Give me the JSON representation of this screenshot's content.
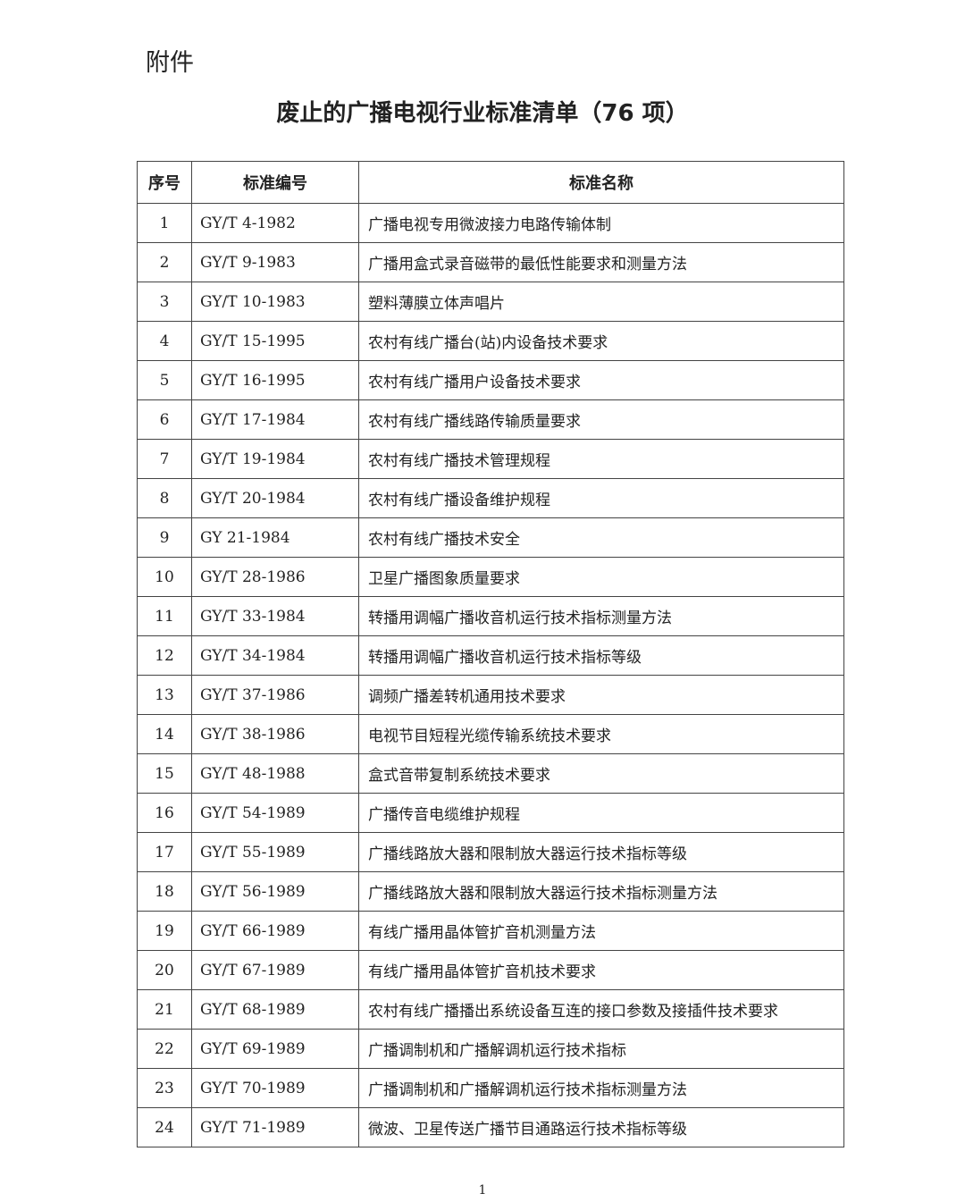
{
  "attachment_label": "附件",
  "title": "废止的广播电视行业标准清单（76 项）",
  "headers": [
    "序号",
    "标准编号",
    "标准名称"
  ],
  "rows": [
    [
      "1",
      "GY/T 4-1982",
      "广播电视专用微波接力电路传输体制"
    ],
    [
      "2",
      "GY/T 9-1983",
      "广播用盒式录音磁带的最低性能要求和测量方法"
    ],
    [
      "3",
      "GY/T 10-1983",
      "塑料薄膜立体声唱片"
    ],
    [
      "4",
      "GY/T 15-1995",
      "农村有线广播台(站)内设备技术要求"
    ],
    [
      "5",
      "GY/T 16-1995",
      "农村有线广播用户设备技术要求"
    ],
    [
      "6",
      "GY/T 17-1984",
      "农村有线广播线路传输质量要求"
    ],
    [
      "7",
      "GY/T 19-1984",
      "农村有线广播技术管理规程"
    ],
    [
      "8",
      "GY/T 20-1984",
      "农村有线广播设备维护规程"
    ],
    [
      "9",
      "GY 21-1984",
      "农村有线广播技术安全"
    ],
    [
      "10",
      "GY/T 28-1986",
      "卫星广播图象质量要求"
    ],
    [
      "11",
      "GY/T 33-1984",
      "转播用调幅广播收音机运行技术指标测量方法"
    ],
    [
      "12",
      "GY/T 34-1984",
      "转播用调幅广播收音机运行技术指标等级"
    ],
    [
      "13",
      "GY/T 37-1986",
      "调频广播差转机通用技术要求"
    ],
    [
      "14",
      "GY/T 38-1986",
      "电视节目短程光缆传输系统技术要求"
    ],
    [
      "15",
      "GY/T 48-1988",
      "盒式音带复制系统技术要求"
    ],
    [
      "16",
      "GY/T 54-1989",
      "广播传音电缆维护规程"
    ],
    [
      "17",
      "GY/T 55-1989",
      "广播线路放大器和限制放大器运行技术指标等级"
    ],
    [
      "18",
      "GY/T 56-1989",
      "广播线路放大器和限制放大器运行技术指标测量方法"
    ],
    [
      "19",
      "GY/T 66-1989",
      "有线广播用晶体管扩音机测量方法"
    ],
    [
      "20",
      "GY/T 67-1989",
      "有线广播用晶体管扩音机技术要求"
    ],
    [
      "21",
      "GY/T 68-1989",
      "农村有线广播播出系统设备互连的接口参数及接插件技术要求"
    ],
    [
      "22",
      "GY/T 69-1989",
      "广播调制机和广播解调机运行技术指标"
    ],
    [
      "23",
      "GY/T 70-1989",
      "广播调制机和广播解调机运行技术指标测量方法"
    ],
    [
      "24",
      "GY/T 71-1989",
      "微波、卫星传送广播节目通路运行技术指标等级"
    ]
  ],
  "page_number": "1"
}
